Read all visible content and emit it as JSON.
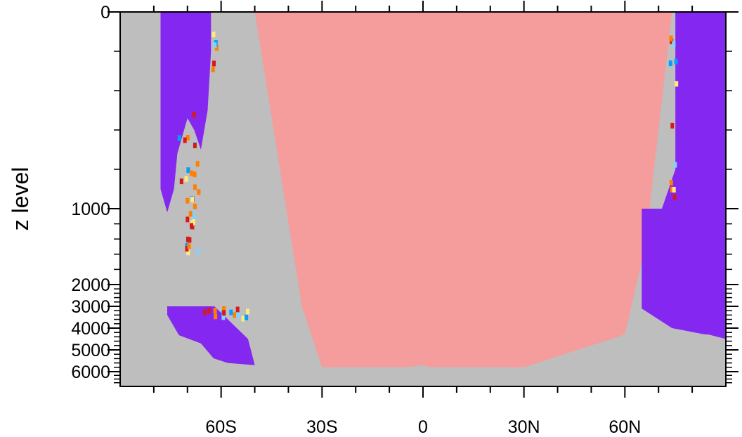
{
  "chart_data": {
    "type": "heatmap",
    "title": "",
    "xlabel": "",
    "ylabel": "z level",
    "x_ticks": [
      {
        "value": -60,
        "label": "60S"
      },
      {
        "value": -30,
        "label": "30S"
      },
      {
        "value": 0,
        "label": "0"
      },
      {
        "value": 30,
        "label": "30N"
      },
      {
        "value": 60,
        "label": "60N"
      }
    ],
    "y_ticks": [
      {
        "value": 0,
        "label": "0"
      },
      {
        "value": 1000,
        "label": "1000"
      },
      {
        "value": 2000,
        "label": "2000"
      },
      {
        "value": 3000,
        "label": "3000"
      },
      {
        "value": 4000,
        "label": "4000"
      },
      {
        "value": 5000,
        "label": "5000"
      },
      {
        "value": 6000,
        "label": "6000"
      }
    ],
    "xlim": [
      -90,
      90
    ],
    "ylim": [
      0,
      6800
    ],
    "y_scale": "stretched (z level)",
    "grid": false,
    "colors": {
      "land": "#bebebe",
      "interior": "#f59c9c",
      "polar_water": "#8427f0",
      "anomaly_red": "#d7191c",
      "anomaly_orange": "#ff7f00",
      "anomaly_yellow": "#ffeb7d",
      "anomaly_blue": "#00a0ff",
      "anomaly_cyan": "#7fd4ff"
    },
    "regions": [
      {
        "name": "interior",
        "color_key": "interior",
        "points": [
          [
            -70,
            0
          ],
          [
            -50,
            0
          ],
          [
            -36,
            3000
          ],
          [
            -30,
            5800
          ],
          [
            0,
            5800
          ],
          [
            30,
            5800
          ],
          [
            60,
            4300
          ],
          [
            66,
            1500
          ],
          [
            74,
            0
          ],
          [
            -70,
            0
          ]
        ]
      },
      {
        "name": "antarctic-bottom-water",
        "color_key": "polar_water",
        "points": [
          [
            -76,
            3000
          ],
          [
            -62,
            3000
          ],
          [
            -52,
            4500
          ],
          [
            -50,
            5700
          ],
          [
            -58,
            5600
          ],
          [
            -70,
            5000
          ],
          [
            -76,
            3400
          ]
        ]
      },
      {
        "name": "antarctic-surface-water",
        "color_key": "polar_water",
        "points": [
          [
            -78,
            0
          ],
          [
            -63,
            0
          ],
          [
            -63,
            200
          ],
          [
            -64,
            500
          ],
          [
            -66,
            700
          ],
          [
            -68,
            600
          ],
          [
            -70,
            540
          ],
          [
            -73,
            720
          ],
          [
            -74,
            900
          ],
          [
            -76,
            1050
          ],
          [
            -78,
            900
          ]
        ]
      },
      {
        "name": "arctic-water",
        "color_key": "polar_water",
        "points": [
          [
            75,
            0
          ],
          [
            90,
            0
          ],
          [
            90,
            4500
          ],
          [
            84,
            4300
          ],
          [
            74,
            4000
          ],
          [
            65,
            3100
          ],
          [
            65,
            1000
          ],
          [
            71,
            1000
          ],
          [
            75,
            800
          ]
        ]
      }
    ],
    "land_mask": [
      [
        -90,
        0
      ],
      [
        -78,
        0
      ],
      [
        -78,
        2000
      ],
      [
        -76,
        3500
      ],
      [
        -73,
        4300
      ],
      [
        -66,
        4700
      ],
      [
        -60,
        5800
      ],
      [
        -50,
        6300
      ],
      [
        -40,
        5800
      ],
      [
        -30,
        5800
      ],
      [
        -20,
        5900
      ],
      [
        -10,
        5900
      ],
      [
        0,
        5700
      ],
      [
        10,
        6200
      ],
      [
        15,
        6400
      ],
      [
        20,
        6200
      ],
      [
        30,
        5900
      ],
      [
        40,
        5500
      ],
      [
        50,
        5200
      ],
      [
        56,
        4700
      ],
      [
        62,
        4000
      ],
      [
        66,
        3300
      ],
      [
        70,
        4000
      ],
      [
        75,
        4200
      ],
      [
        85,
        4300
      ],
      [
        90,
        4500
      ],
      [
        90,
        6800
      ],
      [
        -90,
        6800
      ]
    ]
  }
}
